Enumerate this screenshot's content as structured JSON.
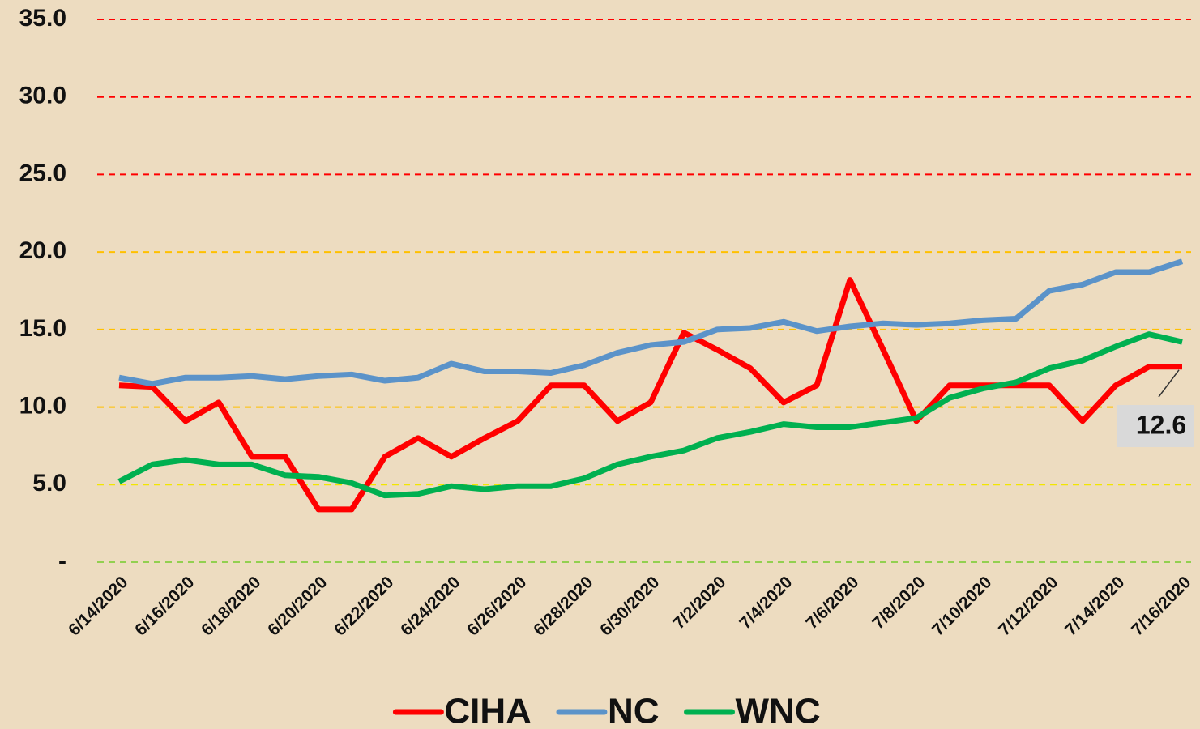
{
  "chart_data": {
    "type": "line",
    "categories": [
      "6/14/2020",
      null,
      "6/16/2020",
      null,
      "6/18/2020",
      null,
      "6/20/2020",
      null,
      "6/22/2020",
      null,
      "6/24/2020",
      null,
      "6/26/2020",
      null,
      "6/28/2020",
      null,
      "6/30/2020",
      null,
      "7/2/2020",
      null,
      "7/4/2020",
      null,
      "7/6/2020",
      null,
      "7/8/2020",
      null,
      "7/10/2020",
      null,
      "7/12/2020",
      null,
      "7/14/2020",
      null,
      "7/16/2020"
    ],
    "series": [
      {
        "name": "CIHA",
        "color": "#ff0000",
        "values": [
          11.4,
          11.3,
          9.1,
          10.3,
          6.8,
          6.8,
          3.4,
          3.4,
          6.8,
          8.0,
          6.8,
          8.0,
          9.1,
          11.4,
          11.4,
          9.1,
          10.3,
          14.8,
          13.7,
          12.5,
          10.3,
          11.4,
          18.2,
          13.7,
          9.1,
          11.4,
          11.4,
          11.4,
          11.4,
          9.1,
          11.4,
          12.6,
          12.6
        ]
      },
      {
        "name": "NC",
        "color": "#5b93c9",
        "values": [
          11.9,
          11.5,
          11.9,
          11.9,
          12.0,
          11.8,
          12.0,
          12.1,
          11.7,
          11.9,
          12.8,
          12.3,
          12.3,
          12.2,
          12.7,
          13.5,
          14.0,
          14.2,
          15.0,
          15.1,
          15.5,
          14.9,
          15.2,
          15.4,
          15.3,
          15.4,
          15.6,
          15.7,
          17.5,
          17.9,
          18.7,
          18.7,
          19.4
        ]
      },
      {
        "name": "WNC",
        "color": "#00b050",
        "values": [
          5.2,
          6.3,
          6.6,
          6.3,
          6.3,
          5.6,
          5.5,
          5.1,
          4.3,
          4.4,
          4.9,
          4.7,
          4.9,
          4.9,
          5.4,
          6.3,
          6.8,
          7.2,
          8.0,
          8.4,
          8.9,
          8.7,
          8.7,
          9.0,
          9.3,
          10.6,
          11.2,
          11.6,
          12.5,
          13.0,
          13.9,
          14.7,
          14.2
        ]
      }
    ],
    "ylim": [
      0,
      35
    ],
    "yticks": [
      {
        "value": 0,
        "label": "-"
      },
      {
        "value": 5,
        "label": "5.0"
      },
      {
        "value": 10,
        "label": "10.0"
      },
      {
        "value": 15,
        "label": "15.0"
      },
      {
        "value": 20,
        "label": "20.0"
      },
      {
        "value": 25,
        "label": "25.0"
      },
      {
        "value": 30,
        "label": "30.0"
      },
      {
        "value": 35,
        "label": "35.0"
      }
    ],
    "grid": true,
    "grid_colors": [
      "#92d050",
      "#f2e600",
      "#ffc000",
      "#ffc000",
      "#ffc000",
      "#ff0000",
      "#ff0000",
      "#ff0000"
    ],
    "legend": "bottom"
  }
}
